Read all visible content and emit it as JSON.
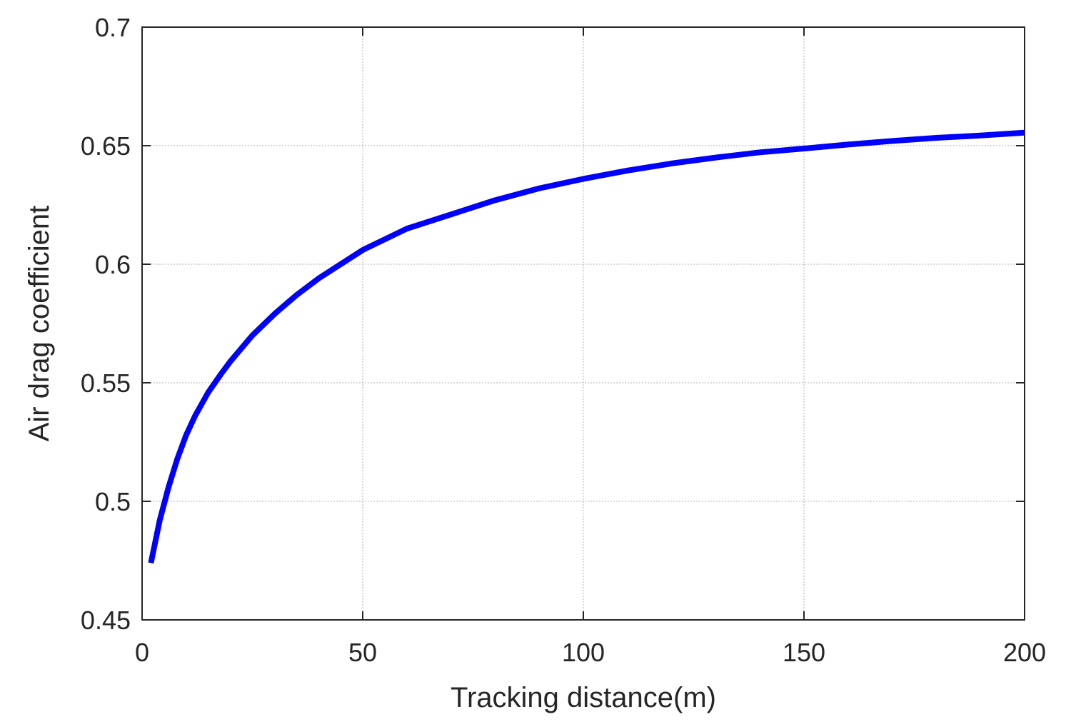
{
  "chart_data": {
    "type": "line",
    "title": "",
    "xlabel": "Tracking distance(m)",
    "ylabel": "Air drag coefficient",
    "xlim": [
      0,
      200
    ],
    "ylim": [
      0.45,
      0.7
    ],
    "xticks": [
      0,
      50,
      100,
      150,
      200
    ],
    "xtick_labels": [
      "0",
      "50",
      "100",
      "150",
      "200"
    ],
    "yticks": [
      0.45,
      0.5,
      0.55,
      0.6,
      0.65,
      0.7
    ],
    "ytick_labels": [
      "0.45",
      "0.5",
      "0.55",
      "0.6",
      "0.65",
      "0.7"
    ],
    "grid": true,
    "series": [
      {
        "color": "#0000ff",
        "x": [
          2,
          4,
          6,
          8,
          10,
          12,
          15,
          18,
          20,
          25,
          30,
          35,
          40,
          45,
          50,
          60,
          70,
          80,
          90,
          100,
          110,
          120,
          130,
          140,
          150,
          160,
          170,
          180,
          190,
          200
        ],
        "y": [
          0.474,
          0.492,
          0.506,
          0.518,
          0.528,
          0.536,
          0.546,
          0.554,
          0.559,
          0.57,
          0.579,
          0.587,
          0.594,
          0.6,
          0.606,
          0.615,
          0.621,
          0.627,
          0.632,
          0.636,
          0.6395,
          0.6425,
          0.645,
          0.6472,
          0.6488,
          0.6505,
          0.652,
          0.6533,
          0.6543,
          0.6555
        ]
      }
    ]
  }
}
